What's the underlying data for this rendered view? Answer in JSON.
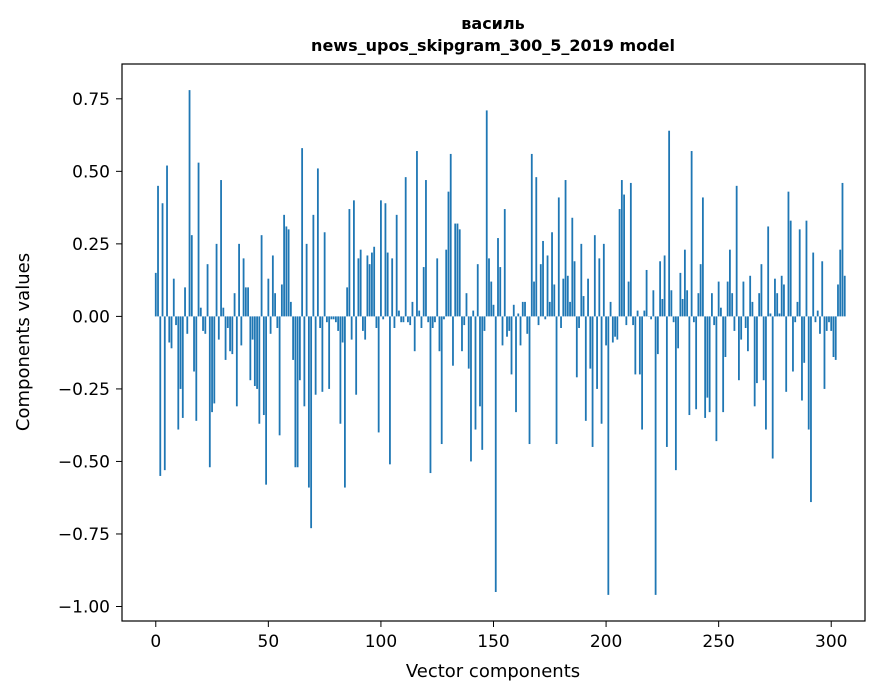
{
  "colors": {
    "bar": "#1f77b4",
    "axes": "#000000",
    "background": "#ffffff"
  },
  "chart_data": {
    "type": "bar",
    "title": "василь",
    "subtitle": "news_upos_skipgram_300_5_2019 model",
    "xlabel": "Vector components",
    "ylabel": "Components values",
    "xlim": [
      -15,
      315
    ],
    "ylim": [
      -1.05,
      0.87
    ],
    "grid": false,
    "xticks": [
      0,
      50,
      100,
      150,
      200,
      250,
      300
    ],
    "xtick_labels": [
      "0",
      "50",
      "100",
      "150",
      "200",
      "250",
      "300"
    ],
    "yticks": [
      0.75,
      0.5,
      0.25,
      0.0,
      -0.25,
      -0.5,
      -0.75,
      -1.0
    ],
    "ytick_labels": [
      "0.75",
      "0.50",
      "0.25",
      "0.00",
      "−0.25",
      "−0.50",
      "−0.75",
      "−1.00"
    ],
    "x_start": 0,
    "values": [
      0.15,
      0.45,
      -0.55,
      0.39,
      -0.53,
      0.52,
      -0.09,
      -0.11,
      0.13,
      -0.03,
      -0.39,
      -0.25,
      -0.35,
      0.1,
      -0.06,
      0.78,
      0.28,
      -0.19,
      -0.36,
      0.53,
      0.03,
      -0.05,
      -0.06,
      0.18,
      -0.52,
      -0.33,
      -0.3,
      0.25,
      -0.08,
      0.47,
      0.03,
      -0.15,
      -0.04,
      -0.12,
      -0.13,
      0.08,
      -0.31,
      0.25,
      -0.1,
      0.2,
      0.1,
      0.1,
      -0.22,
      -0.08,
      -0.24,
      -0.25,
      -0.37,
      0.28,
      -0.34,
      -0.58,
      0.13,
      -0.06,
      0.21,
      0.08,
      -0.04,
      -0.41,
      0.11,
      0.35,
      0.31,
      0.3,
      0.05,
      -0.15,
      -0.52,
      -0.52,
      -0.22,
      0.58,
      -0.31,
      0.25,
      -0.59,
      -0.73,
      0.35,
      -0.27,
      0.51,
      -0.04,
      -0.26,
      0.29,
      -0.02,
      -0.25,
      -0.01,
      -0.01,
      -0.02,
      -0.05,
      -0.37,
      -0.09,
      -0.59,
      0.1,
      0.37,
      -0.08,
      0.4,
      -0.27,
      0.2,
      0.23,
      -0.05,
      -0.08,
      0.21,
      0.18,
      0.22,
      0.24,
      -0.04,
      -0.4,
      0.4,
      -0.01,
      0.39,
      0.22,
      -0.51,
      0.2,
      -0.04,
      0.35,
      0.02,
      -0.02,
      -0.02,
      0.48,
      -0.02,
      -0.03,
      0.05,
      -0.12,
      0.57,
      0.02,
      -0.04,
      0.17,
      0.47,
      -0.02,
      -0.54,
      -0.04,
      -0.02,
      0.2,
      -0.12,
      -0.44,
      -0.01,
      0.23,
      0.43,
      0.56,
      -0.17,
      0.32,
      0.32,
      0.3,
      -0.12,
      -0.03,
      0.08,
      -0.18,
      -0.5,
      0.02,
      -0.39,
      0.18,
      -0.31,
      -0.46,
      -0.05,
      0.71,
      0.2,
      0.12,
      0.04,
      -0.95,
      0.27,
      0.17,
      -0.1,
      0.37,
      -0.07,
      -0.05,
      -0.2,
      0.04,
      -0.33,
      0.01,
      -0.1,
      0.05,
      0.05,
      -0.06,
      -0.44,
      0.56,
      0.12,
      0.48,
      -0.03,
      0.18,
      0.26,
      -0.01,
      0.21,
      0.05,
      0.29,
      0.11,
      -0.44,
      0.41,
      -0.04,
      0.13,
      0.47,
      0.14,
      0.05,
      0.34,
      0.19,
      -0.21,
      -0.04,
      0.25,
      0.07,
      -0.36,
      0.13,
      -0.18,
      -0.45,
      0.28,
      -0.25,
      0.2,
      -0.37,
      0.25,
      -0.1,
      -0.96,
      0.05,
      -0.09,
      -0.07,
      -0.08,
      0.37,
      0.47,
      0.42,
      -0.03,
      0.12,
      0.46,
      -0.03,
      -0.2,
      0.02,
      -0.2,
      -0.39,
      0.02,
      0.16,
      0.0,
      -0.01,
      0.09,
      -0.96,
      -0.13,
      0.19,
      0.06,
      0.21,
      -0.45,
      0.64,
      0.09,
      -0.02,
      -0.53,
      -0.11,
      0.15,
      0.06,
      0.23,
      0.09,
      -0.34,
      0.57,
      -0.02,
      -0.32,
      0.08,
      0.18,
      0.41,
      -0.35,
      -0.28,
      -0.33,
      0.08,
      -0.03,
      -0.43,
      0.12,
      0.03,
      -0.33,
      -0.14,
      0.12,
      0.23,
      0.08,
      -0.05,
      0.45,
      -0.22,
      -0.08,
      0.12,
      -0.04,
      -0.12,
      0.14,
      0.05,
      -0.31,
      -0.23,
      0.08,
      0.18,
      -0.22,
      -0.39,
      0.31,
      0.01,
      -0.49,
      0.13,
      0.08,
      0.01,
      0.14,
      0.11,
      -0.26,
      0.43,
      0.33,
      -0.19,
      -0.02,
      0.05,
      0.3,
      -0.29,
      -0.16,
      0.33,
      -0.39,
      -0.64,
      0.22,
      -0.02,
      0.02,
      -0.06,
      0.19,
      -0.25,
      -0.05,
      -0.02,
      -0.05,
      -0.14,
      -0.15,
      0.11,
      0.23,
      0.46,
      0.14
    ]
  }
}
